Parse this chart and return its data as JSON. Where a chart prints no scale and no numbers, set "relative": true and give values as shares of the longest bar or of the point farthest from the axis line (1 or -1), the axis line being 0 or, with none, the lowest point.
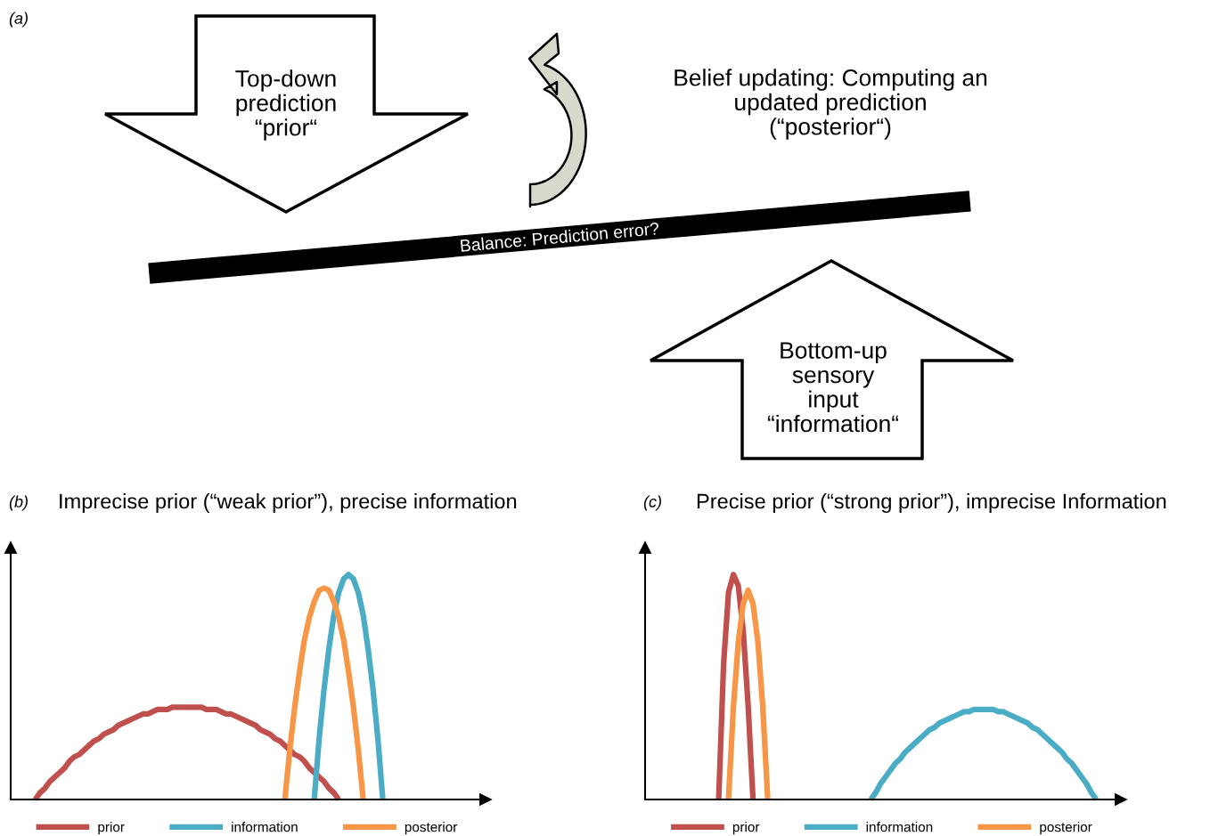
{
  "chart_data": [
    {
      "type": "other",
      "annotations": [
        "(a)",
        "Top-down\nprediction\n“prior“",
        "Belief updating: Computing an\nupdated prediction\n(“posterior“)",
        "Balance: Prediction error?",
        "Bottom-up\nsensory\ninput\n“information“"
      ]
    },
    {
      "type": "line",
      "relative": true,
      "title": "Imprecise prior (“weak prior”), precise information",
      "annotations": [
        "(b)"
      ],
      "legend": "bottom",
      "line_style": "solid",
      "categories": [
        null,
        null,
        null,
        null,
        null,
        null,
        null,
        null,
        null,
        null,
        null,
        null,
        null,
        null,
        null,
        null,
        null,
        null,
        null,
        null,
        null,
        null,
        null,
        null,
        null,
        null,
        null,
        null,
        null,
        null,
        null,
        null,
        null,
        null,
        null,
        null,
        null,
        null,
        null,
        null,
        null,
        null,
        null,
        null,
        null,
        null,
        null,
        null,
        null,
        null,
        null,
        null,
        null,
        null,
        null,
        null,
        null,
        null,
        null,
        null,
        null,
        null,
        null,
        null,
        null,
        null,
        null,
        null,
        null,
        null,
        null,
        null,
        null,
        null,
        null,
        null,
        null,
        null,
        null,
        null,
        null,
        null,
        null,
        null,
        null,
        null,
        null,
        null,
        null,
        null,
        null,
        null,
        null,
        null,
        null,
        null,
        null
      ],
      "series": [
        {
          "name": "prior",
          "color": "#c0504d",
          "values": [
            null,
            null,
            null,
            null,
            null,
            0,
            0.03,
            0.05,
            0.08,
            0.1,
            0.12,
            0.14,
            0.17,
            0.19,
            0.2,
            0.22,
            0.24,
            0.26,
            0.27,
            0.29,
            0.3,
            0.31,
            0.33,
            0.34,
            0.35,
            0.36,
            0.37,
            0.38,
            0.38,
            0.39,
            0.4,
            0.4,
            0.4,
            0.41,
            0.41,
            0.41,
            0.41,
            0.41,
            0.41,
            0.41,
            0.4,
            0.4,
            0.4,
            0.39,
            0.38,
            0.38,
            0.37,
            0.36,
            0.35,
            0.34,
            0.33,
            0.31,
            0.3,
            0.29,
            0.27,
            0.26,
            0.24,
            0.22,
            0.2,
            0.19,
            0.17,
            0.14,
            0.12,
            0.1,
            0.08,
            0.05,
            0.03,
            0,
            null,
            null,
            null,
            null,
            null,
            null,
            null,
            null,
            null,
            null,
            null,
            null,
            null,
            null,
            null,
            null,
            null,
            null,
            null,
            null,
            null,
            null,
            null,
            null,
            null,
            null,
            null,
            null,
            null
          ]
        },
        {
          "name": "information",
          "color": "#4bacc6",
          "values": [
            null,
            null,
            null,
            null,
            null,
            null,
            null,
            null,
            null,
            null,
            null,
            null,
            null,
            null,
            null,
            null,
            null,
            null,
            null,
            null,
            null,
            null,
            null,
            null,
            null,
            null,
            null,
            null,
            null,
            null,
            null,
            null,
            null,
            null,
            null,
            null,
            null,
            null,
            null,
            null,
            null,
            null,
            null,
            null,
            null,
            null,
            null,
            null,
            null,
            null,
            null,
            null,
            null,
            null,
            null,
            null,
            null,
            null,
            null,
            null,
            null,
            null,
            0,
            0.27,
            0.49,
            0.67,
            0.82,
            0.92,
            0.98,
            1,
            0.98,
            0.92,
            0.82,
            0.67,
            0.49,
            0.27,
            0,
            null,
            null,
            null,
            null,
            null,
            null,
            null,
            null,
            null,
            null,
            null,
            null,
            null,
            null,
            null,
            null,
            null,
            null,
            null,
            null
          ]
        },
        {
          "name": "posterior",
          "color": "#f79646",
          "values": [
            null,
            null,
            null,
            null,
            null,
            null,
            null,
            null,
            null,
            null,
            null,
            null,
            null,
            null,
            null,
            null,
            null,
            null,
            null,
            null,
            null,
            null,
            null,
            null,
            null,
            null,
            null,
            null,
            null,
            null,
            null,
            null,
            null,
            null,
            null,
            null,
            null,
            null,
            null,
            null,
            null,
            null,
            null,
            null,
            null,
            null,
            null,
            null,
            null,
            null,
            null,
            null,
            null,
            null,
            null,
            null,
            0,
            0.22,
            0.41,
            0.57,
            0.71,
            0.81,
            0.88,
            0.93,
            0.94,
            0.93,
            0.88,
            0.81,
            0.71,
            0.57,
            0.41,
            0.22,
            0,
            null,
            null,
            null,
            null,
            null,
            null,
            null,
            null,
            null,
            null,
            null,
            null,
            null,
            null,
            null,
            null,
            null,
            null,
            null,
            null,
            null,
            null,
            null,
            null
          ]
        }
      ]
    },
    {
      "type": "line",
      "relative": true,
      "title": "Precise prior (“strong prior”), imprecise Information",
      "annotations": [
        "(c)"
      ],
      "legend": "bottom",
      "line_style": "solid",
      "categories": [
        null,
        null,
        null,
        null,
        null,
        null,
        null,
        null,
        null,
        null,
        null,
        null,
        null,
        null,
        null,
        null,
        null,
        null,
        null,
        null,
        null,
        null,
        null,
        null,
        null,
        null,
        null,
        null,
        null,
        null,
        null,
        null,
        null,
        null,
        null,
        null,
        null,
        null,
        null,
        null,
        null,
        null,
        null,
        null,
        null,
        null,
        null,
        null,
        null,
        null,
        null,
        null,
        null,
        null,
        null,
        null,
        null,
        null,
        null,
        null,
        null,
        null,
        null,
        null,
        null,
        null,
        null,
        null,
        null,
        null,
        null,
        null,
        null,
        null,
        null,
        null,
        null,
        null,
        null,
        null,
        null,
        null,
        null,
        null,
        null,
        null,
        null,
        null,
        null,
        null,
        null,
        null,
        null,
        null,
        null,
        null,
        null
      ],
      "series": [
        {
          "name": "prior",
          "color": "#c0504d",
          "values": [
            null,
            null,
            null,
            null,
            null,
            null,
            null,
            null,
            null,
            null,
            null,
            null,
            null,
            null,
            null,
            0,
            0.6,
            0.92,
            1,
            0.95,
            0.75,
            0.42,
            0,
            null,
            null,
            null,
            null,
            null,
            null,
            null,
            null,
            null,
            null,
            null,
            null,
            null,
            null,
            null,
            null,
            null,
            null,
            null,
            null,
            null,
            null,
            null,
            null,
            null,
            null,
            null,
            null,
            null,
            null,
            null,
            null,
            null,
            null,
            null,
            null,
            null,
            null,
            null,
            null,
            null,
            null,
            null,
            null,
            null,
            null,
            null,
            null,
            null,
            null,
            null,
            null,
            null,
            null,
            null,
            null,
            null,
            null,
            null,
            null,
            null,
            null,
            null,
            null,
            null,
            null,
            null,
            null,
            null,
            null,
            null,
            null,
            null,
            null
          ]
        },
        {
          "name": "information",
          "color": "#4bacc6",
          "values": [
            null,
            null,
            null,
            null,
            null,
            null,
            null,
            null,
            null,
            null,
            null,
            null,
            null,
            null,
            null,
            null,
            null,
            null,
            null,
            null,
            null,
            null,
            null,
            null,
            null,
            null,
            null,
            null,
            null,
            null,
            null,
            null,
            null,
            null,
            null,
            null,
            null,
            null,
            null,
            null,
            null,
            null,
            null,
            null,
            null,
            null,
            0,
            0.03,
            0.07,
            0.1,
            0.13,
            0.16,
            0.18,
            0.21,
            0.23,
            0.25,
            0.27,
            0.29,
            0.31,
            0.32,
            0.34,
            0.35,
            0.36,
            0.37,
            0.38,
            0.39,
            0.39,
            0.4,
            0.4,
            0.4,
            0.4,
            0.4,
            0.39,
            0.39,
            0.38,
            0.37,
            0.36,
            0.35,
            0.34,
            0.32,
            0.31,
            0.29,
            0.27,
            0.25,
            0.23,
            0.21,
            0.18,
            0.16,
            0.13,
            0.1,
            0.07,
            0.03,
            0,
            null,
            null,
            null,
            null
          ]
        },
        {
          "name": "posterior",
          "color": "#f79646",
          "values": [
            null,
            null,
            null,
            null,
            null,
            null,
            null,
            null,
            null,
            null,
            null,
            null,
            null,
            null,
            null,
            null,
            null,
            0,
            0.41,
            0.7,
            0.87,
            0.93,
            0.87,
            0.7,
            0.41,
            0,
            null,
            null,
            null,
            null,
            null,
            null,
            null,
            null,
            null,
            null,
            null,
            null,
            null,
            null,
            null,
            null,
            null,
            null,
            null,
            null,
            null,
            null,
            null,
            null,
            null,
            null,
            null,
            null,
            null,
            null,
            null,
            null,
            null,
            null,
            null,
            null,
            null,
            null,
            null,
            null,
            null,
            null,
            null,
            null,
            null,
            null,
            null,
            null,
            null,
            null,
            null,
            null,
            null,
            null,
            null,
            null,
            null,
            null,
            null,
            null,
            null,
            null,
            null,
            null,
            null,
            null,
            null,
            null,
            null,
            null,
            null
          ]
        }
      ]
    }
  ]
}
